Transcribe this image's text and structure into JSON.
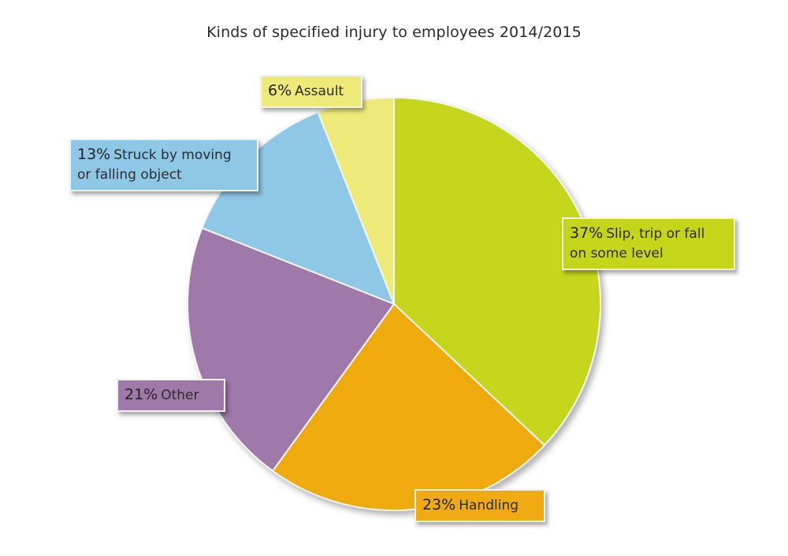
{
  "title": "Kinds of specified injury to employees 2014/2015",
  "chart_data": {
    "type": "pie",
    "title": "Kinds of specified injury to employees 2014/2015",
    "start_angle": "12 o'clock, clockwise",
    "categories": [
      "Slip, trip or fall on some level",
      "Handling",
      "Other",
      "Struck by moving or falling object",
      "Assault"
    ],
    "values": [
      37,
      23,
      21,
      13,
      6
    ],
    "unit": "%",
    "colors": [
      "#c5d61a",
      "#efab11",
      "#9e79aa",
      "#8fc8e7",
      "#eeea7a"
    ],
    "legend": "none (callout labels)"
  },
  "labels": [
    {
      "pct": "37%",
      "line1": "Slip, trip or fall",
      "line2": "on some level",
      "color": "#c5d61a"
    },
    {
      "pct": "23%",
      "line1": "Handling",
      "line2": "",
      "color": "#efab11"
    },
    {
      "pct": "21%",
      "line1": "Other",
      "line2": "",
      "color": "#9e79aa"
    },
    {
      "pct": "13%",
      "line1": "Struck by moving",
      "line2": "or falling object",
      "color": "#8fc8e7"
    },
    {
      "pct": "6%",
      "line1": "Assault",
      "line2": "",
      "color": "#eeea7a"
    }
  ]
}
